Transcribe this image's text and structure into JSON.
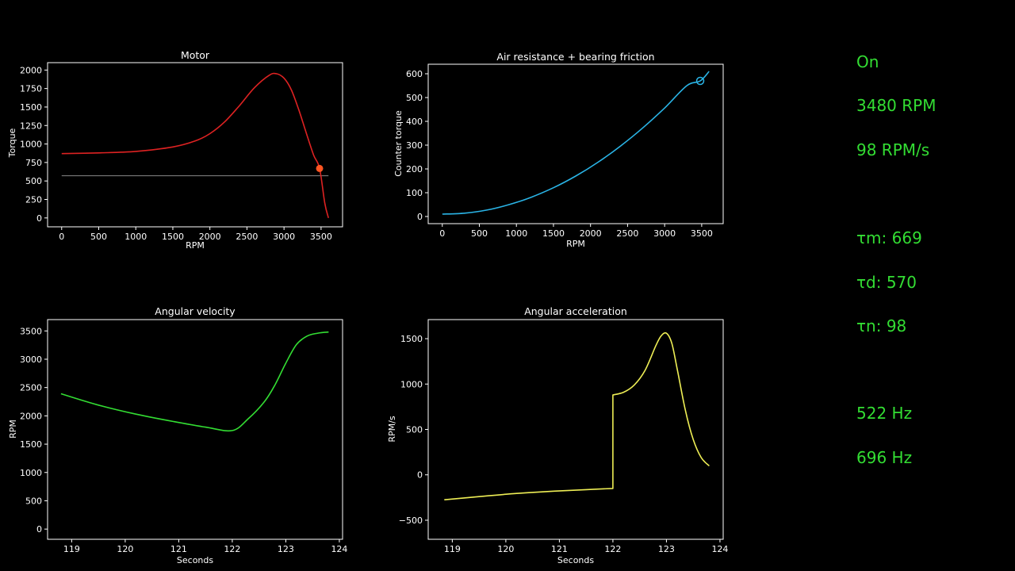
{
  "status_panel": {
    "state": "On",
    "rpm": "3480 RPM",
    "accel": "98 RPM/s",
    "tau_m": "τm: 669",
    "tau_d": "τd: 570",
    "tau_n": "τn: 98",
    "freq1": "522 Hz",
    "freq2": "696 Hz"
  },
  "colors": {
    "background": "#000000",
    "status_text": "#33dd33",
    "motor_curve": "#dd2222",
    "operating_point": "#ff5522",
    "drag_curve": "#2ab4e6",
    "velocity_curve": "#33dd33",
    "acceleration_curve": "#eeee55",
    "reference_line": "#888888"
  },
  "chart_data": [
    {
      "id": "motor",
      "type": "line",
      "title": "Motor",
      "xlabel": "RPM",
      "ylabel": "Torque",
      "xlim": [
        -190,
        3790
      ],
      "ylim": [
        -120,
        2100
      ],
      "xticks": [
        0,
        500,
        1000,
        1500,
        2000,
        2500,
        3000,
        3500
      ],
      "yticks": [
        0,
        250,
        500,
        750,
        1000,
        1250,
        1500,
        1750,
        2000
      ],
      "series": [
        {
          "color": "#dd2222",
          "x": [
            0,
            500,
            1000,
            1500,
            1800,
            2000,
            2200,
            2400,
            2600,
            2800,
            2900,
            3000,
            3100,
            3200,
            3300,
            3400,
            3480,
            3550,
            3600
          ],
          "y": [
            870,
            880,
            900,
            960,
            1040,
            1140,
            1300,
            1520,
            1760,
            1930,
            1950,
            1890,
            1730,
            1460,
            1150,
            850,
            669,
            200,
            0
          ]
        }
      ],
      "hlines": [
        {
          "y": 570,
          "x": [
            0,
            3600
          ],
          "color": "#888888"
        }
      ],
      "markers": [
        {
          "x": 3480,
          "y": 669,
          "style": "filled",
          "color": "#ff5522"
        }
      ]
    },
    {
      "id": "drag",
      "type": "line",
      "title": "Air resistance + bearing friction",
      "xlabel": "RPM",
      "ylabel": "Counter torque",
      "xlim": [
        -190,
        3790
      ],
      "ylim": [
        -30,
        640
      ],
      "xticks": [
        0,
        500,
        1000,
        1500,
        2000,
        2500,
        3000,
        3500
      ],
      "yticks": [
        0,
        100,
        200,
        300,
        400,
        500,
        600
      ],
      "series": [
        {
          "color": "#2ab4e6",
          "x": [
            0,
            300,
            600,
            900,
            1200,
            1500,
            1800,
            2100,
            2400,
            2700,
            3000,
            3300,
            3480,
            3600
          ],
          "y": [
            10,
            14,
            27,
            50,
            81,
            121,
            170,
            228,
            295,
            371,
            456,
            550,
            570,
            610
          ]
        }
      ],
      "markers": [
        {
          "x": 3480,
          "y": 570,
          "style": "hollow",
          "color": "#2ab4e6"
        }
      ]
    },
    {
      "id": "velocity",
      "type": "line",
      "title": "Angular velocity",
      "xlabel": "Seconds",
      "ylabel": "RPM",
      "xlim": [
        118.55,
        124.06
      ],
      "ylim": [
        -180,
        3700
      ],
      "xticks": [
        119,
        120,
        121,
        122,
        123,
        124
      ],
      "yticks": [
        0,
        500,
        1000,
        1500,
        2000,
        2500,
        3000,
        3500
      ],
      "series": [
        {
          "color": "#33dd33",
          "x": [
            118.8,
            119.5,
            120.2,
            120.9,
            121.5,
            122.0,
            122.3,
            122.6,
            122.8,
            123.0,
            123.2,
            123.4,
            123.6,
            123.8
          ],
          "y": [
            2390,
            2190,
            2030,
            1900,
            1800,
            1740,
            1950,
            2250,
            2550,
            2930,
            3260,
            3410,
            3460,
            3480
          ]
        }
      ]
    },
    {
      "id": "acceleration",
      "type": "line",
      "title": "Angular acceleration",
      "xlabel": "Seconds",
      "ylabel": "RPM/s",
      "xlim": [
        118.55,
        124.06
      ],
      "ylim": [
        -710,
        1710
      ],
      "xticks": [
        119,
        120,
        121,
        122,
        123,
        124
      ],
      "yticks": [
        -500,
        0,
        500,
        1000,
        1500
      ],
      "series": [
        {
          "color": "#eeee55",
          "x": [
            118.85,
            119.5,
            120.2,
            120.9,
            121.5,
            122.0,
            122.0,
            122.2,
            122.4,
            122.6,
            122.8,
            122.9,
            123.0,
            123.1,
            123.2,
            123.35,
            123.5,
            123.65,
            123.8
          ],
          "y": [
            -275,
            -240,
            -205,
            -180,
            -163,
            -150,
            880,
            910,
            990,
            1150,
            1420,
            1530,
            1560,
            1450,
            1170,
            720,
            390,
            190,
            98
          ]
        }
      ]
    }
  ]
}
